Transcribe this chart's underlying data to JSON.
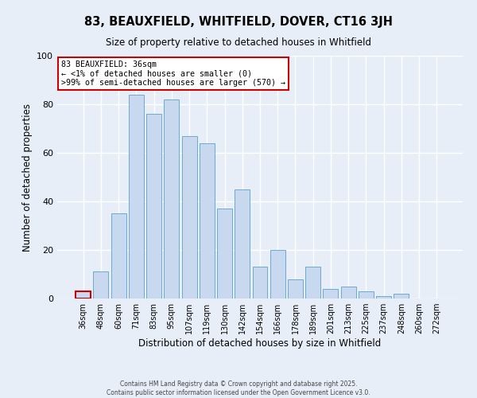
{
  "title": "83, BEAUXFIELD, WHITFIELD, DOVER, CT16 3JH",
  "subtitle": "Size of property relative to detached houses in Whitfield",
  "xlabel": "Distribution of detached houses by size in Whitfield",
  "ylabel": "Number of detached properties",
  "bar_labels": [
    "36sqm",
    "48sqm",
    "60sqm",
    "71sqm",
    "83sqm",
    "95sqm",
    "107sqm",
    "119sqm",
    "130sqm",
    "142sqm",
    "154sqm",
    "166sqm",
    "178sqm",
    "189sqm",
    "201sqm",
    "213sqm",
    "225sqm",
    "237sqm",
    "248sqm",
    "260sqm",
    "272sqm"
  ],
  "bar_values": [
    3,
    11,
    35,
    84,
    76,
    82,
    67,
    64,
    37,
    45,
    13,
    20,
    8,
    13,
    4,
    5,
    3,
    1,
    2,
    0,
    0
  ],
  "bar_color": "#c8d9ef",
  "bar_edge_color": "#6aaad4",
  "ylim": [
    0,
    100
  ],
  "yticks": [
    0,
    20,
    40,
    60,
    80,
    100
  ],
  "annotation_title": "83 BEAUXFIELD: 36sqm",
  "annotation_line1": "← <1% of detached houses are smaller (0)",
  "annotation_line2": ">99% of semi-detached houses are larger (570) →",
  "annotation_box_facecolor": "#ffffff",
  "annotation_box_edgecolor": "#cc0000",
  "footer1": "Contains HM Land Registry data © Crown copyright and database right 2025.",
  "footer2": "Contains public sector information licensed under the Open Government Licence v3.0.",
  "bg_color": "#e8eef8",
  "plot_bg_color": "#e8eef8",
  "grid_color": "#ffffff",
  "highlight_bar_index": 0,
  "highlight_bar_edgecolor": "#cc0000"
}
